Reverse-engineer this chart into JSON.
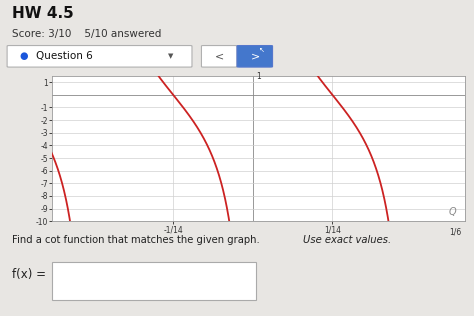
{
  "title": "HW 4.5",
  "subtitle": "Score: 3/10    5/10 answered",
  "question": "Question 6",
  "graph_xlim": [
    -0.18,
    0.19
  ],
  "graph_ylim": [
    -10,
    1.5
  ],
  "curve_color": "#cc2222",
  "curve_lw": 1.3,
  "bg_color": "#e8e6e3",
  "plot_bg": "#ffffff",
  "grid_color": "#cccccc",
  "period": 0.142857,
  "font_color": "#333333",
  "text_find_normal": "Find a cot function that matches the given graph. ",
  "text_find_italic": "Use exact values.",
  "text_fx": "f(x) =",
  "amplitude": 5,
  "y_tick_vals": [
    1,
    -1,
    -2,
    -3,
    -4,
    -5,
    -6,
    -7,
    -8,
    -9,
    -10
  ],
  "header_bg": "#ebebeb"
}
